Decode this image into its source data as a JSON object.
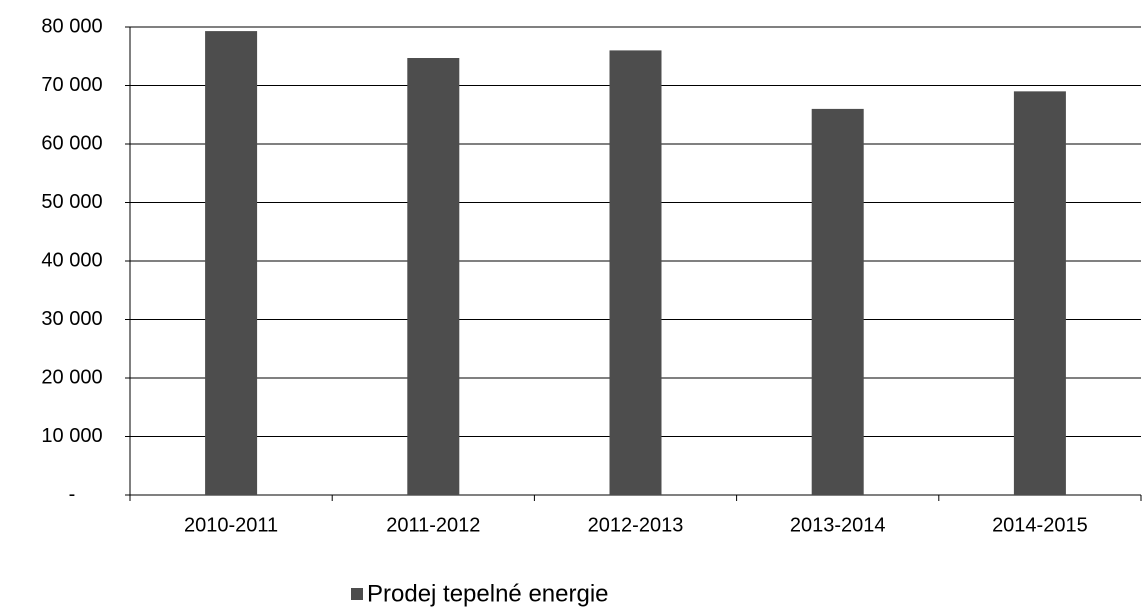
{
  "chart_data": {
    "type": "bar",
    "categories": [
      "2010-2011",
      "2011-2012",
      "2012-2013",
      "2013-2014",
      "2014-2015"
    ],
    "series": [
      {
        "name": "Prodej tepelné energie",
        "color": "#4d4d4d",
        "values": [
          79300,
          74700,
          76000,
          66000,
          69000
        ]
      }
    ],
    "ylim": [
      0,
      80000
    ],
    "yticks": [
      {
        "value": 0,
        "label": "-"
      },
      {
        "value": 10000,
        "label": "10 000"
      },
      {
        "value": 20000,
        "label": "20 000"
      },
      {
        "value": 30000,
        "label": "30 000"
      },
      {
        "value": 40000,
        "label": "40 000"
      },
      {
        "value": 50000,
        "label": "50 000"
      },
      {
        "value": 60000,
        "label": "60 000"
      },
      {
        "value": 70000,
        "label": "70 000"
      },
      {
        "value": 80000,
        "label": "80 000"
      }
    ],
    "grid": true,
    "legend": "bottom"
  }
}
